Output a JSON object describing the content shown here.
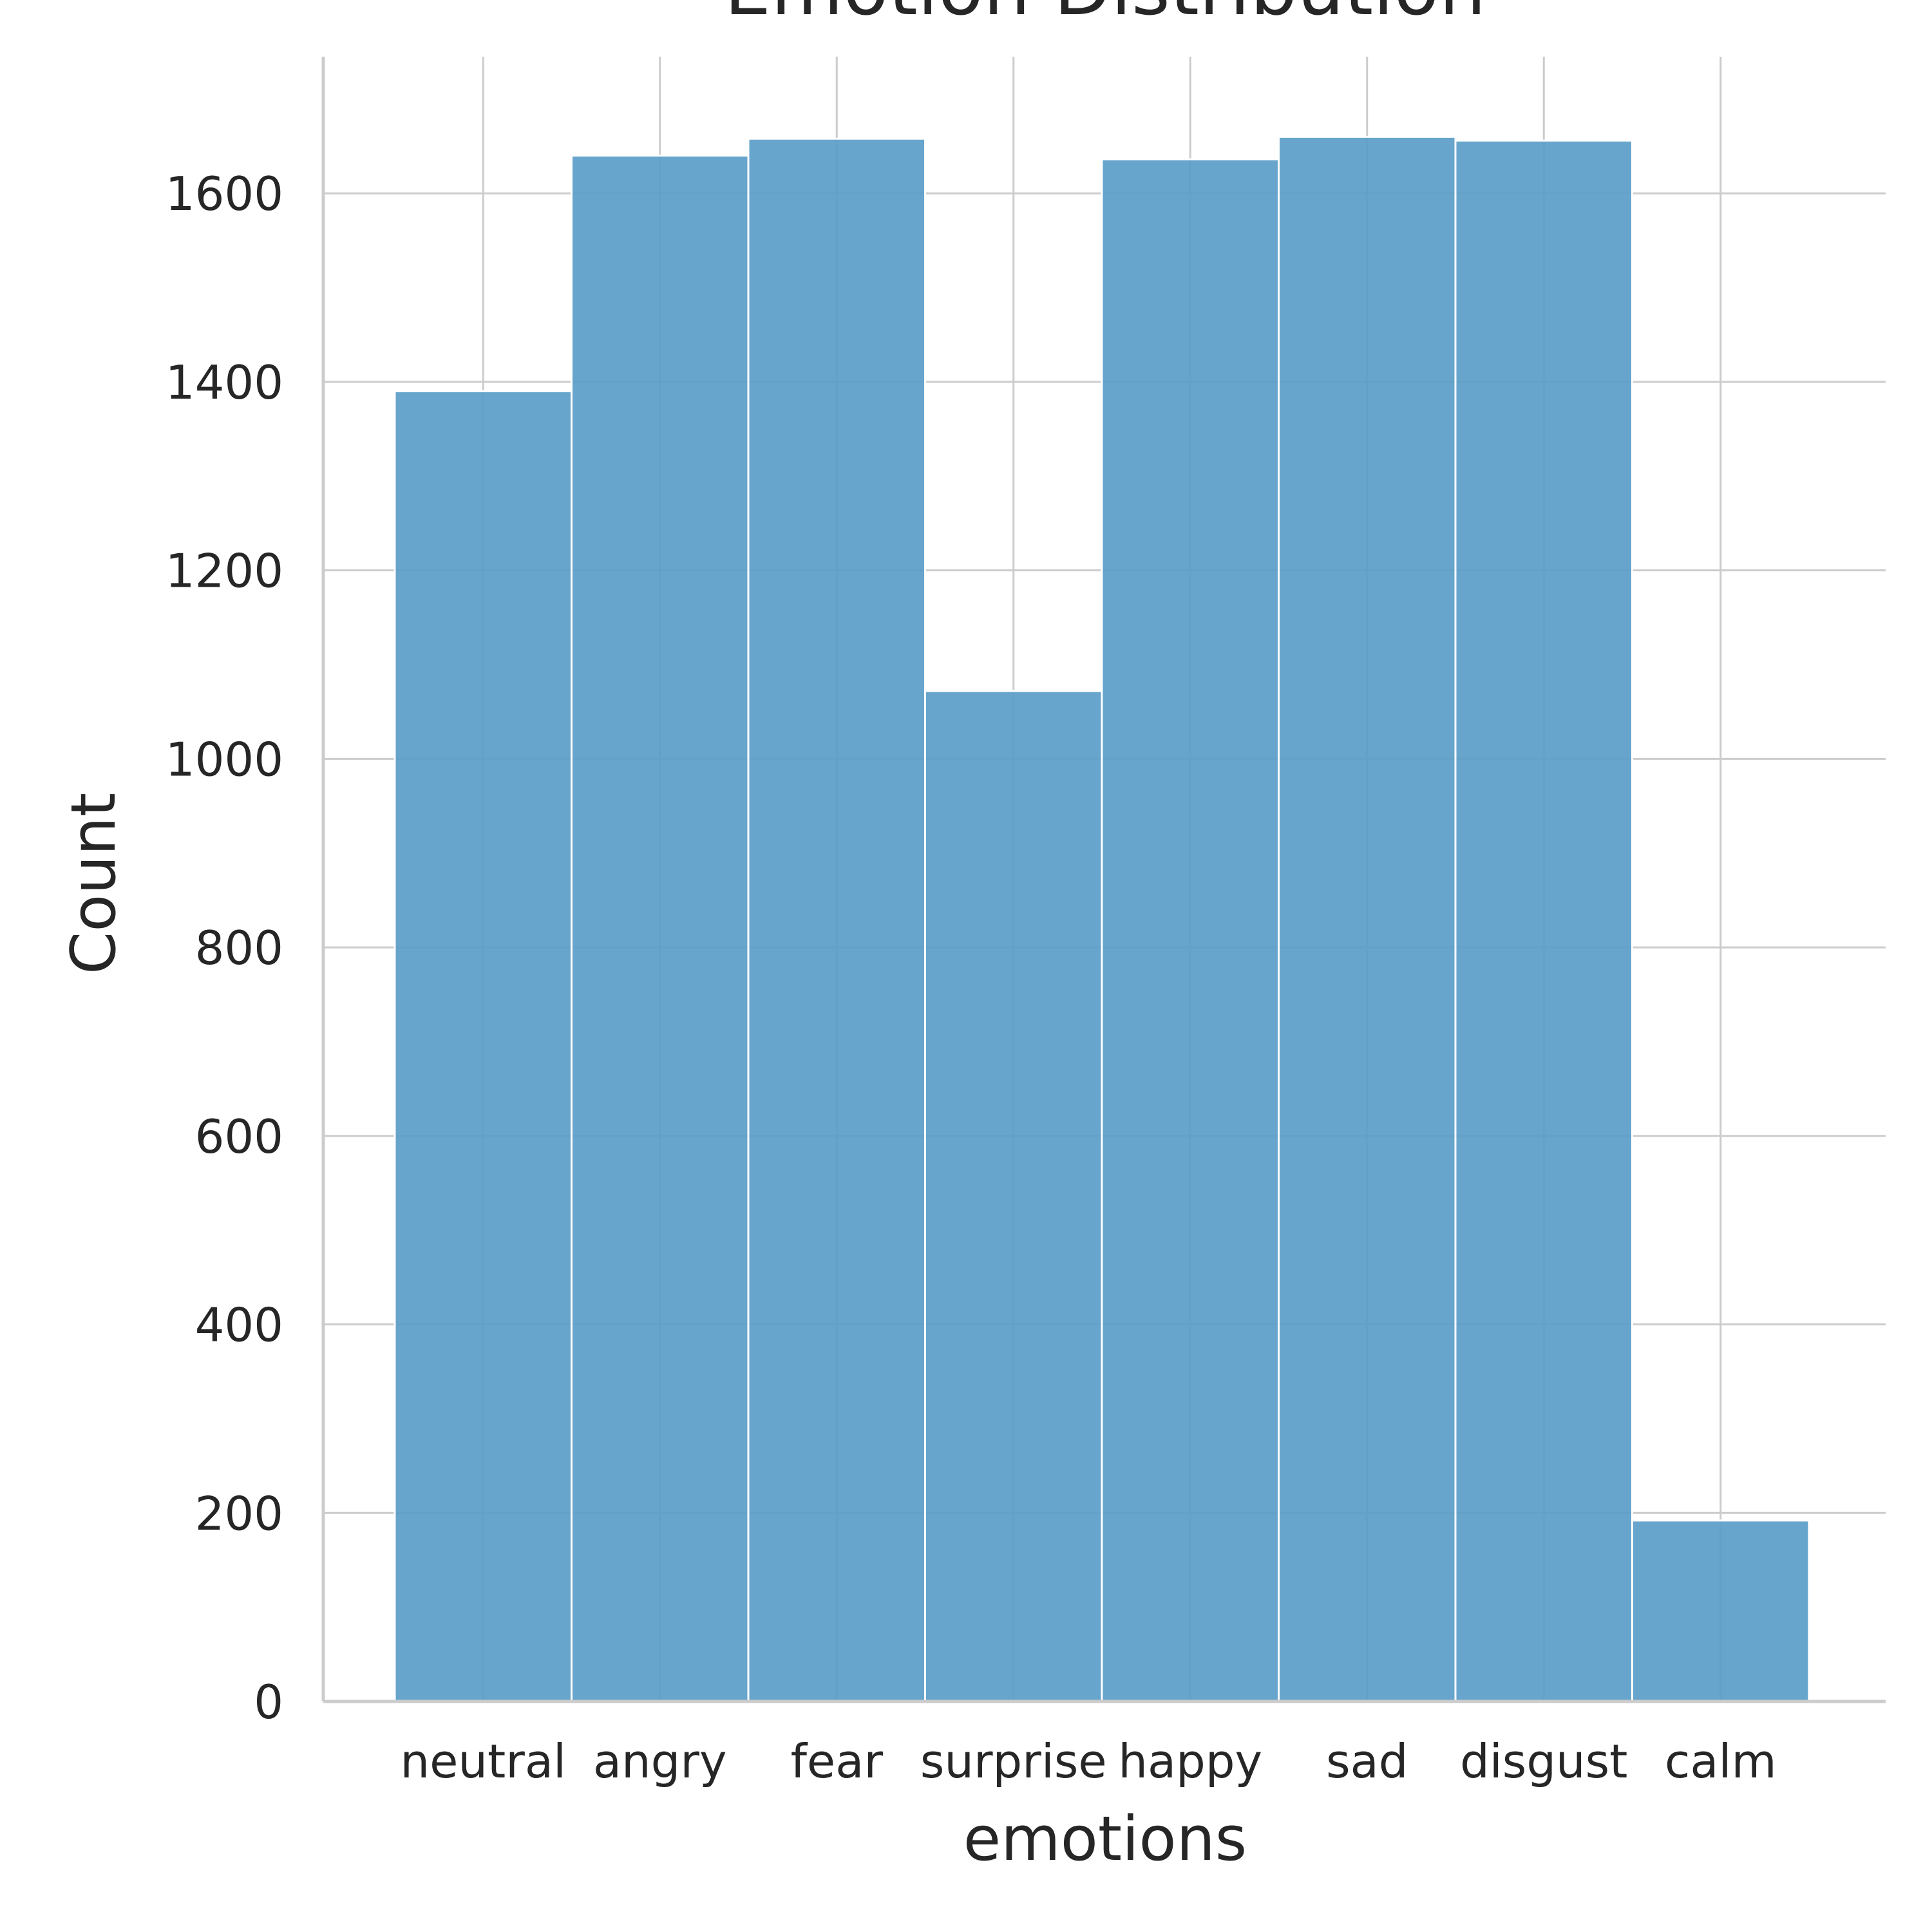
{
  "chart_data": {
    "type": "bar",
    "title": "Emotion Distribution",
    "xlabel": "emotions",
    "ylabel": "Count",
    "categories": [
      "neutral",
      "angry",
      "fear",
      "surprise",
      "happy",
      "sad",
      "disgust",
      "calm"
    ],
    "values": [
      1390,
      1640,
      1658,
      1072,
      1636,
      1660,
      1656,
      192
    ],
    "yticks": [
      0,
      200,
      400,
      600,
      800,
      1000,
      1200,
      1400,
      1600
    ],
    "ylim": [
      0,
      1745
    ],
    "grid": true,
    "bar_color": "#5a9dc8"
  }
}
